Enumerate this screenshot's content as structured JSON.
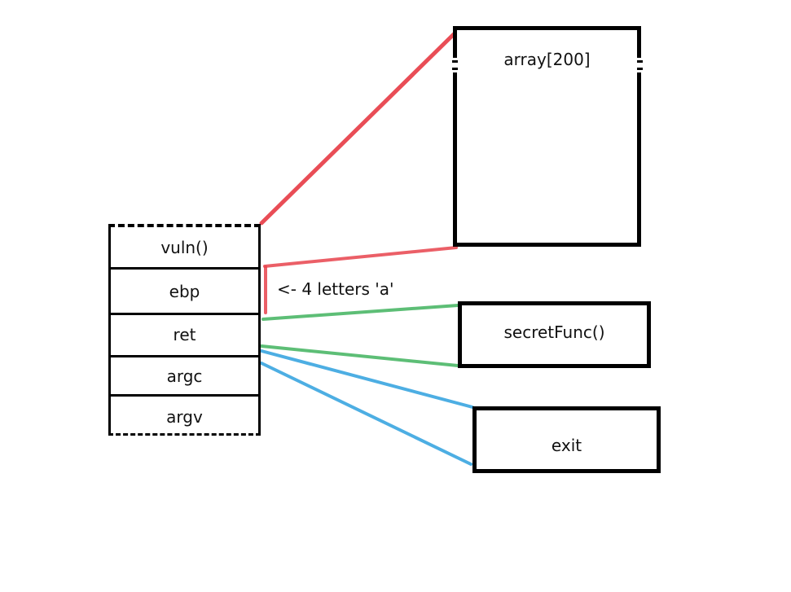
{
  "stack_frame": {
    "cells": [
      {
        "label": "vuln()"
      },
      {
        "label": "ebp"
      },
      {
        "label": "ret"
      },
      {
        "label": "argc"
      },
      {
        "label": "argv"
      }
    ]
  },
  "boxes": {
    "array": {
      "label": "array[200]"
    },
    "secret_func": {
      "label": "secretFunc()"
    },
    "exit": {
      "label": "exit"
    }
  },
  "annotation": {
    "text": "<- 4 letters 'a'"
  },
  "colors": {
    "buffer_lines": "#e8444d",
    "secret_lines": "#4cb868",
    "exit_lines": "#3aa6e0",
    "outline": "#000000"
  }
}
